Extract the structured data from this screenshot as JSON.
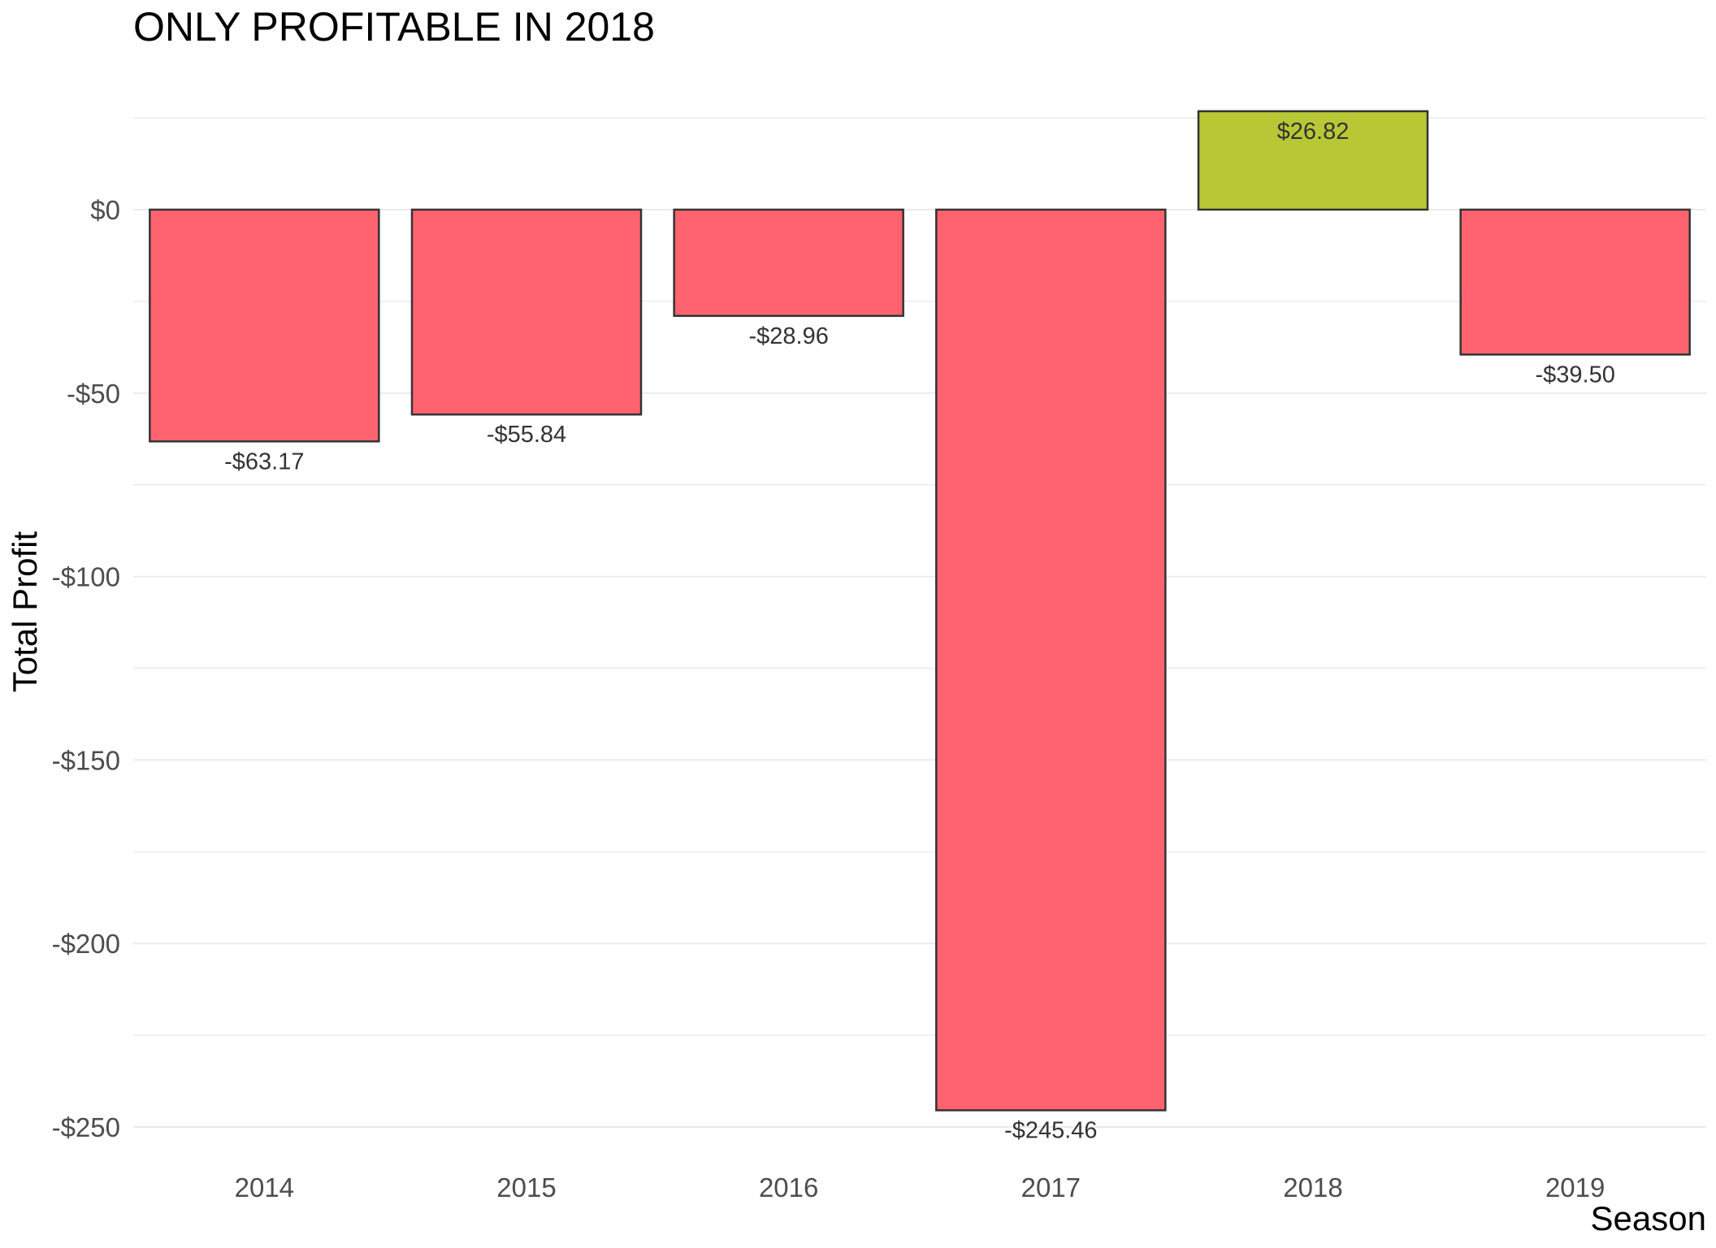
{
  "chart_data": {
    "type": "bar",
    "title": "ONLY PROFITABLE IN 2018",
    "xlabel": "Season",
    "ylabel": "Total Profit",
    "categories": [
      "2014",
      "2015",
      "2016",
      "2017",
      "2018",
      "2019"
    ],
    "values": [
      -63.17,
      -55.84,
      -28.96,
      -245.46,
      26.82,
      -39.5
    ],
    "data_labels": [
      "-$63.17",
      "-$55.84",
      "-$28.96",
      "-$245.46",
      "$26.82",
      "-$39.50"
    ],
    "ylim": [
      -250,
      25
    ],
    "y_ticks": [
      0,
      -50,
      -100,
      -150,
      -200,
      -250
    ],
    "y_tick_labels": [
      "$0",
      "-$50",
      "-$100",
      "-$150",
      "-$200",
      "-$250"
    ],
    "grid": true,
    "legend": "none",
    "colors": {
      "negative": "#fe636f",
      "positive": "#b8c834",
      "bar_outline": "#333333",
      "grid": "#ebebeb"
    }
  }
}
